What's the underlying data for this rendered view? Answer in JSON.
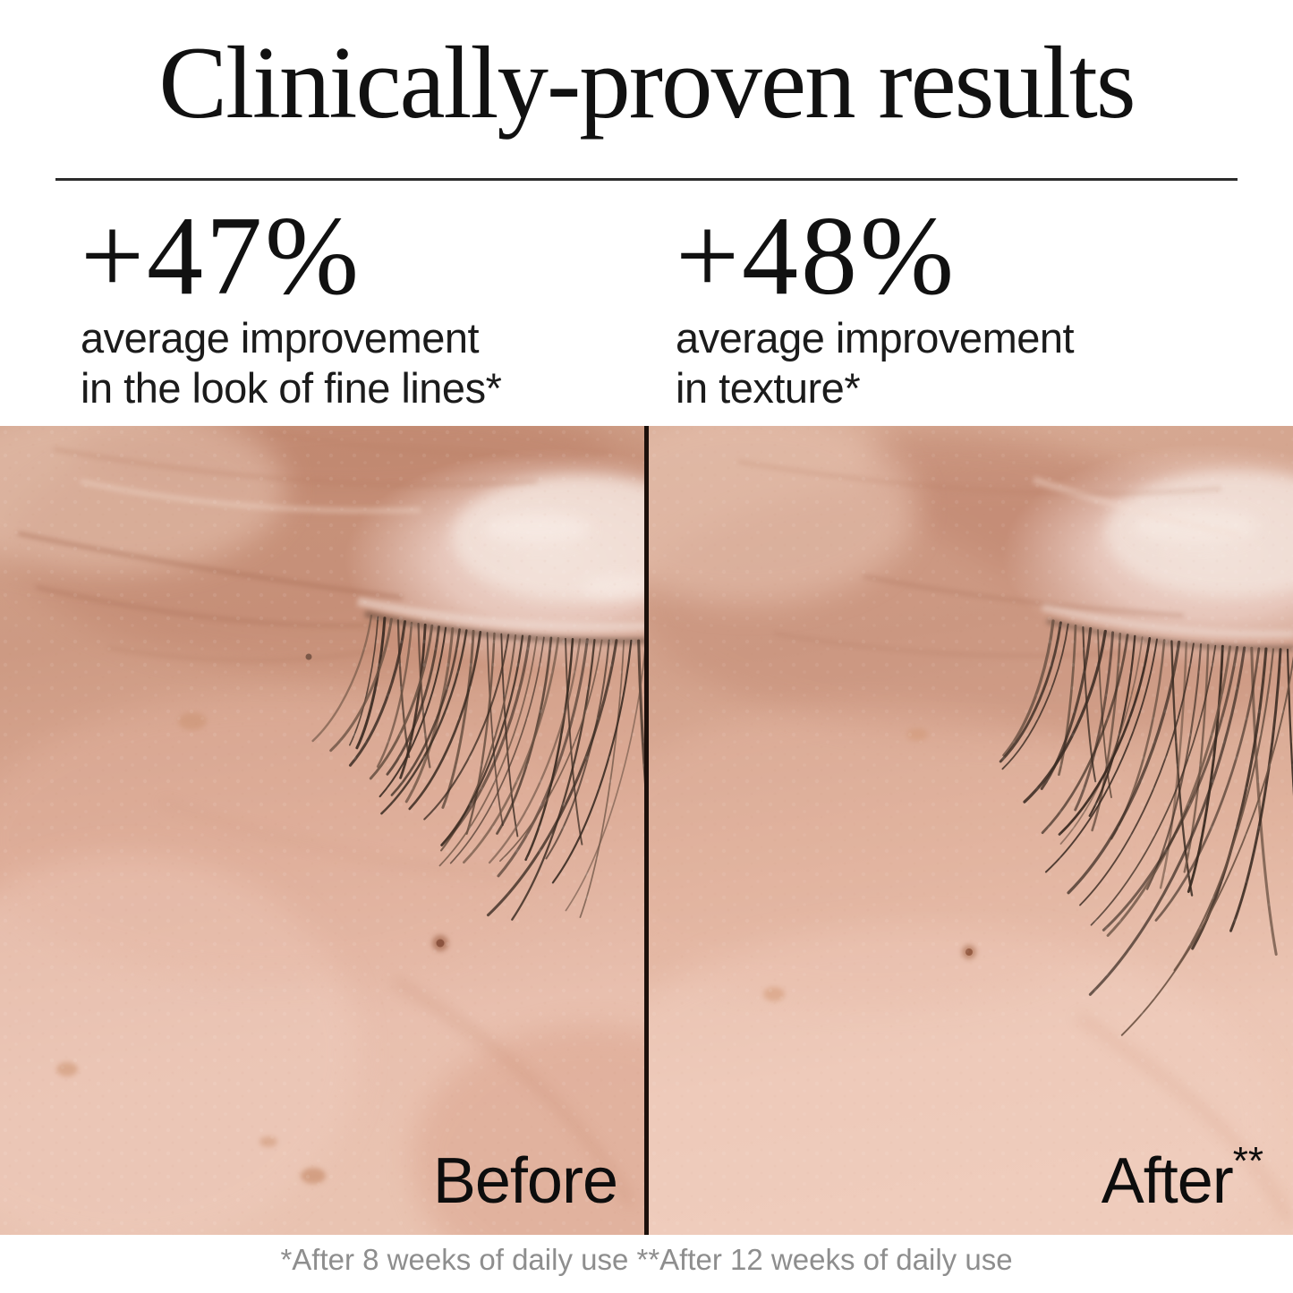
{
  "header": {
    "title": "Clinically-proven results"
  },
  "stats": [
    {
      "value": "+47%",
      "description": "average improvement\nin the look of fine lines*"
    },
    {
      "value": "+48%",
      "description": "average improvement\nin texture*"
    }
  ],
  "comparison": {
    "before_label": "Before",
    "after_label": "After",
    "after_footnote_marker": "**"
  },
  "footer": {
    "disclaimer": "*After 8 weeks of daily use **After 12 weeks of daily use"
  },
  "colors": {
    "text_primary": "#111111",
    "rule": "#2b2b2b",
    "footer_text": "#8e8e8e",
    "photo_divider": "#1c100b",
    "skin_light": "#eecabb",
    "skin_mid": "#d9a890",
    "skin_deep": "#c48a72",
    "eyelid_highlight": "#f2e0d8",
    "lash_dark": "#3a2b22",
    "lash_light": "#6b5243",
    "wrinkle": "#a76d54"
  }
}
